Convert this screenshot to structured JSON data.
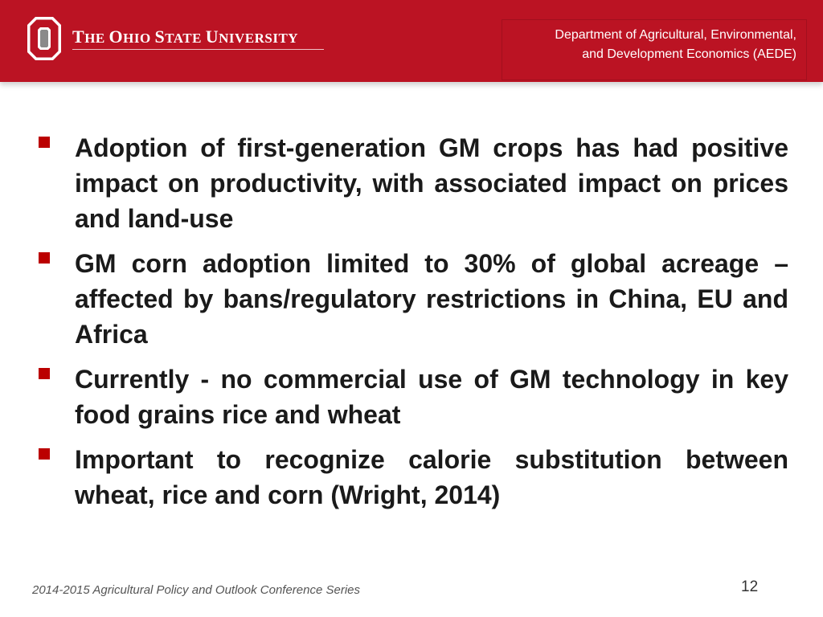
{
  "header": {
    "university_first": "T",
    "university_rest": "HE ",
    "words": [
      {
        "cap": "O",
        "rest": "HIO "
      },
      {
        "cap": "S",
        "rest": "TATE "
      },
      {
        "cap": "U",
        "rest": "NIVERSITY"
      }
    ],
    "department_line1": "Department of Agricultural, Environmental,",
    "department_line2": "and Development Economics (AEDE)",
    "brand_color": "#bb1323"
  },
  "bullets": [
    "Adoption of first-generation GM crops has had positive impact on productivity, with associated impact on prices and land-use",
    "GM corn adoption limited to 30% of global acreage – affected by bans/regulatory restrictions in China, EU and Africa",
    "Currently - no commercial use of GM technology in key food grains rice and wheat",
    "Important to recognize calorie substitution between wheat, rice and corn (Wright, 2014)"
  ],
  "footer": {
    "series": "2014-2015 Agricultural Policy and Outlook Conference Series",
    "page_number": "12"
  }
}
